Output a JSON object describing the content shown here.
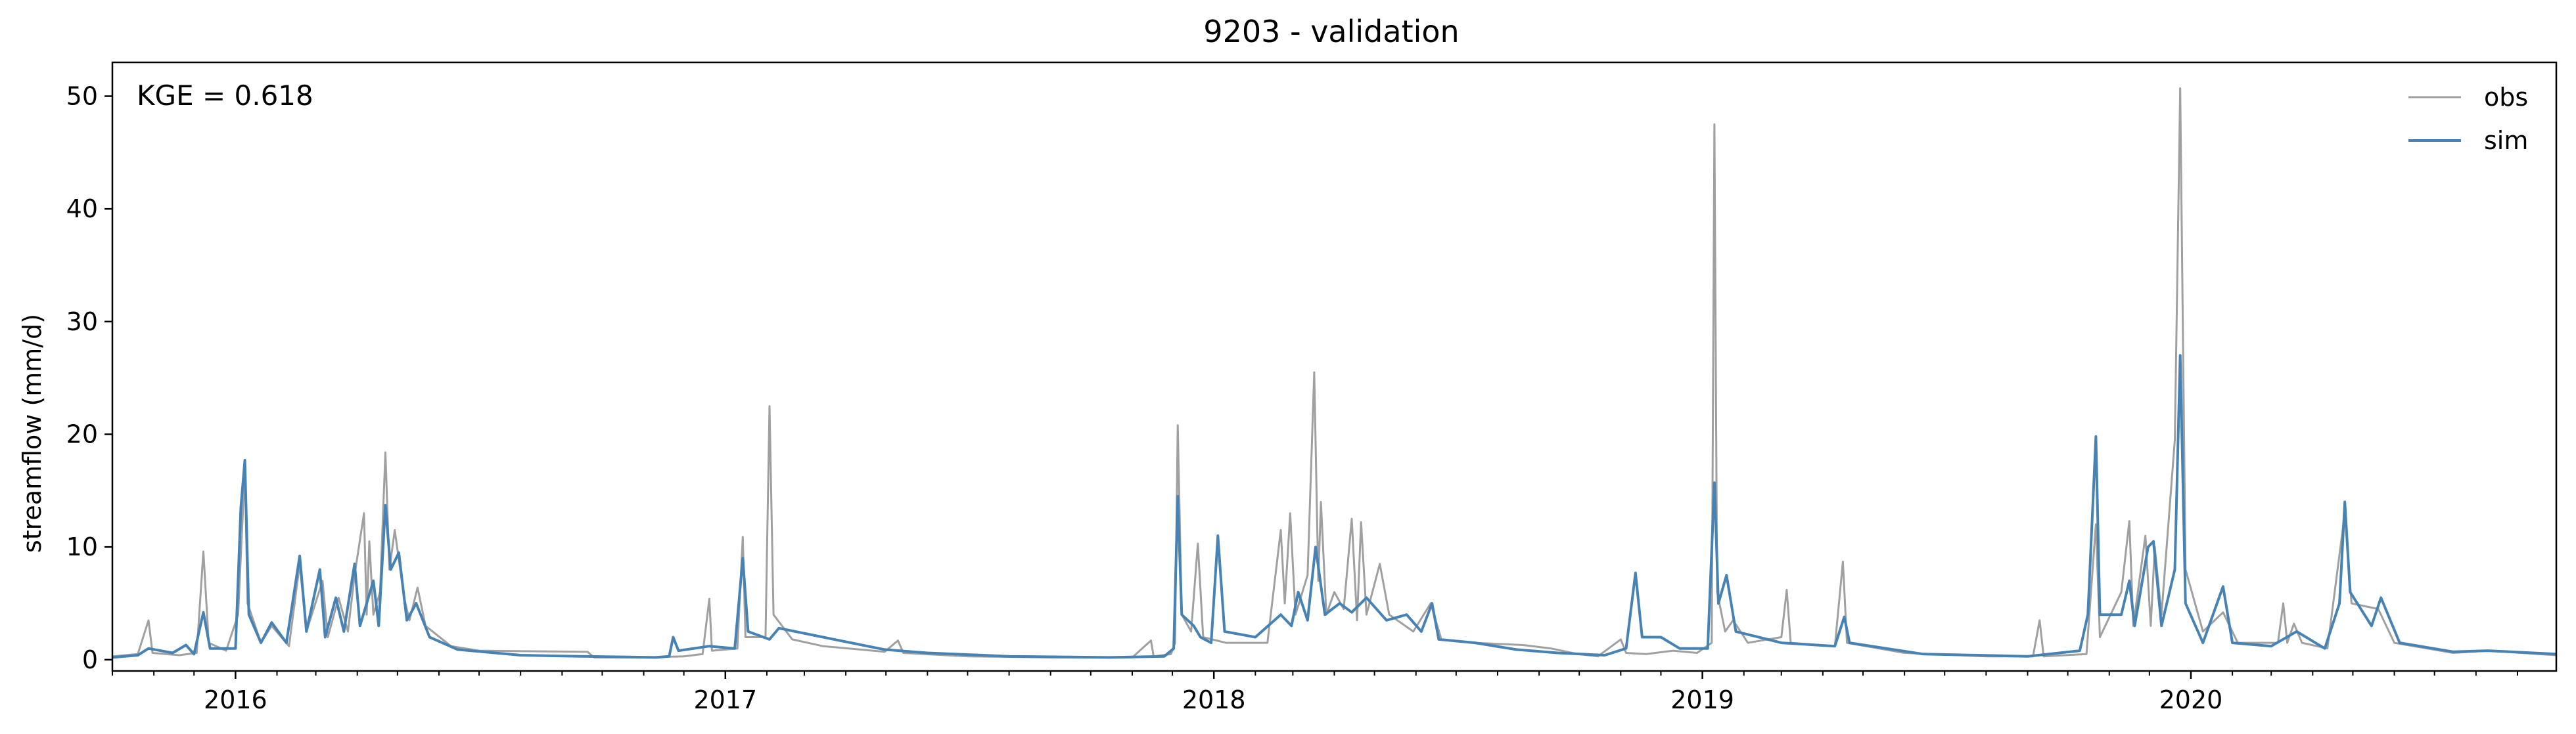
{
  "chart_data": {
    "type": "line",
    "title": "9203 - validation",
    "xlabel": "",
    "ylabel": "streamflow (mm/d)",
    "annotation": "KGE = 0.618",
    "xlim": [
      "2015-10-01",
      "2020-09-30"
    ],
    "ylim": [
      -1,
      53
    ],
    "y_ticks": [
      0,
      10,
      20,
      30,
      40,
      50
    ],
    "x_tick_labels": [
      "2016",
      "2017",
      "2018",
      "2019",
      "2020"
    ],
    "x_tick_dates": [
      "2016-01-01",
      "2017-01-01",
      "2018-01-01",
      "2019-01-01",
      "2020-01-01"
    ],
    "grid": false,
    "legend_position": "top-right",
    "series": [
      {
        "name": "obs",
        "color": "#a0a0a0",
        "points": [
          [
            "2015-10-01",
            0.3
          ],
          [
            "2015-10-20",
            0.5
          ],
          [
            "2015-10-28",
            3.5
          ],
          [
            "2015-10-31",
            0.6
          ],
          [
            "2015-11-20",
            0.4
          ],
          [
            "2015-12-03",
            0.6
          ],
          [
            "2015-12-08",
            9.6
          ],
          [
            "2015-12-12",
            1.5
          ],
          [
            "2015-12-25",
            0.8
          ],
          [
            "2016-01-03",
            4.0
          ],
          [
            "2016-01-08",
            17.0
          ],
          [
            "2016-01-10",
            5.0
          ],
          [
            "2016-01-20",
            1.5
          ],
          [
            "2016-01-28",
            3.0
          ],
          [
            "2016-02-10",
            1.2
          ],
          [
            "2016-02-18",
            8.5
          ],
          [
            "2016-02-23",
            2.5
          ],
          [
            "2016-03-06",
            7.0
          ],
          [
            "2016-03-10",
            2.0
          ],
          [
            "2016-03-18",
            5.5
          ],
          [
            "2016-03-25",
            2.5
          ],
          [
            "2016-03-30",
            7.5
          ],
          [
            "2016-04-06",
            13.0
          ],
          [
            "2016-04-08",
            4.0
          ],
          [
            "2016-04-10",
            10.5
          ],
          [
            "2016-04-13",
            4.0
          ],
          [
            "2016-04-18",
            6.0
          ],
          [
            "2016-04-22",
            18.4
          ],
          [
            "2016-04-25",
            8.0
          ],
          [
            "2016-04-29",
            11.5
          ],
          [
            "2016-05-06",
            5.5
          ],
          [
            "2016-05-10",
            3.5
          ],
          [
            "2016-05-16",
            6.4
          ],
          [
            "2016-05-22",
            3.0
          ],
          [
            "2016-06-10",
            1.2
          ],
          [
            "2016-07-01",
            0.8
          ],
          [
            "2016-09-20",
            0.7
          ],
          [
            "2016-09-25",
            0.2
          ],
          [
            "2016-11-01",
            0.2
          ],
          [
            "2016-12-01",
            0.3
          ],
          [
            "2016-12-15",
            0.5
          ],
          [
            "2016-12-20",
            5.4
          ],
          [
            "2016-12-22",
            0.8
          ],
          [
            "2017-01-10",
            1.0
          ],
          [
            "2017-01-14",
            10.9
          ],
          [
            "2017-01-16",
            2.0
          ],
          [
            "2017-01-31",
            2.0
          ],
          [
            "2017-02-03",
            22.5
          ],
          [
            "2017-02-06",
            4.0
          ],
          [
            "2017-02-20",
            1.8
          ],
          [
            "2017-03-15",
            1.2
          ],
          [
            "2017-04-30",
            0.7
          ],
          [
            "2017-05-10",
            1.7
          ],
          [
            "2017-05-14",
            0.6
          ],
          [
            "2017-07-01",
            0.3
          ],
          [
            "2017-09-01",
            0.2
          ],
          [
            "2017-11-01",
            0.2
          ],
          [
            "2017-11-15",
            1.7
          ],
          [
            "2017-11-17",
            0.3
          ],
          [
            "2017-11-30",
            0.5
          ],
          [
            "2017-12-03",
            1.5
          ],
          [
            "2017-12-05",
            20.8
          ],
          [
            "2017-12-08",
            4.0
          ],
          [
            "2017-12-15",
            2.5
          ],
          [
            "2017-12-20",
            10.3
          ],
          [
            "2017-12-24",
            2.0
          ],
          [
            "2018-01-10",
            1.5
          ],
          [
            "2018-02-10",
            1.5
          ],
          [
            "2018-02-20",
            11.5
          ],
          [
            "2018-02-23",
            5.0
          ],
          [
            "2018-02-27",
            13.0
          ],
          [
            "2018-03-03",
            4.0
          ],
          [
            "2018-03-12",
            7.5
          ],
          [
            "2018-03-17",
            25.5
          ],
          [
            "2018-03-20",
            7.0
          ],
          [
            "2018-03-22",
            14.0
          ],
          [
            "2018-03-26",
            4.0
          ],
          [
            "2018-04-01",
            6.0
          ],
          [
            "2018-04-08",
            4.5
          ],
          [
            "2018-04-14",
            12.5
          ],
          [
            "2018-04-18",
            3.5
          ],
          [
            "2018-04-21",
            12.2
          ],
          [
            "2018-04-25",
            4.0
          ],
          [
            "2018-05-05",
            8.5
          ],
          [
            "2018-05-12",
            4.0
          ],
          [
            "2018-05-30",
            2.5
          ],
          [
            "2018-06-12",
            5.0
          ],
          [
            "2018-06-20",
            1.8
          ],
          [
            "2018-07-15",
            1.5
          ],
          [
            "2018-08-20",
            1.3
          ],
          [
            "2018-09-10",
            1.0
          ],
          [
            "2018-09-30",
            0.5
          ],
          [
            "2018-10-15",
            0.3
          ],
          [
            "2018-11-01",
            1.8
          ],
          [
            "2018-11-05",
            0.6
          ],
          [
            "2018-11-20",
            0.5
          ],
          [
            "2018-12-10",
            0.8
          ],
          [
            "2018-12-28",
            0.6
          ],
          [
            "2019-01-08",
            1.5
          ],
          [
            "2019-01-10",
            47.5
          ],
          [
            "2019-01-12",
            6.0
          ],
          [
            "2019-01-18",
            2.5
          ],
          [
            "2019-01-24",
            3.5
          ],
          [
            "2019-02-04",
            1.5
          ],
          [
            "2019-03-01",
            2.0
          ],
          [
            "2019-03-05",
            6.2
          ],
          [
            "2019-03-08",
            1.5
          ],
          [
            "2019-04-10",
            1.2
          ],
          [
            "2019-04-16",
            8.7
          ],
          [
            "2019-04-19",
            1.5
          ],
          [
            "2019-06-01",
            0.6
          ],
          [
            "2019-08-01",
            0.3
          ],
          [
            "2019-09-05",
            0.3
          ],
          [
            "2019-09-10",
            3.5
          ],
          [
            "2019-09-13",
            0.3
          ],
          [
            "2019-10-15",
            0.5
          ],
          [
            "2019-10-22",
            12.0
          ],
          [
            "2019-10-25",
            2.0
          ],
          [
            "2019-11-10",
            6.0
          ],
          [
            "2019-11-16",
            12.3
          ],
          [
            "2019-11-19",
            3.0
          ],
          [
            "2019-11-28",
            11.0
          ],
          [
            "2019-12-02",
            3.0
          ],
          [
            "2019-12-05",
            10.0
          ],
          [
            "2019-12-10",
            4.0
          ],
          [
            "2019-12-20",
            19.5
          ],
          [
            "2019-12-24",
            50.7
          ],
          [
            "2019-12-28",
            8.0
          ],
          [
            "2020-01-10",
            2.5
          ],
          [
            "2020-01-25",
            4.2
          ],
          [
            "2020-02-05",
            1.5
          ],
          [
            "2020-03-06",
            1.5
          ],
          [
            "2020-03-10",
            5.0
          ],
          [
            "2020-03-13",
            1.5
          ],
          [
            "2020-03-18",
            3.2
          ],
          [
            "2020-03-24",
            1.5
          ],
          [
            "2020-04-12",
            1.0
          ],
          [
            "2020-04-25",
            13.0
          ],
          [
            "2020-04-30",
            5.0
          ],
          [
            "2020-05-20",
            4.5
          ],
          [
            "2020-06-01",
            1.5
          ],
          [
            "2020-07-15",
            0.6
          ],
          [
            "2020-08-10",
            0.8
          ],
          [
            "2020-09-30",
            0.4
          ]
        ]
      },
      {
        "name": "sim",
        "color": "#4682b4",
        "points": [
          [
            "2015-10-01",
            0.2
          ],
          [
            "2015-10-20",
            0.4
          ],
          [
            "2015-10-28",
            1.0
          ],
          [
            "2015-11-15",
            0.6
          ],
          [
            "2015-11-25",
            1.3
          ],
          [
            "2015-12-01",
            0.5
          ],
          [
            "2015-12-08",
            4.2
          ],
          [
            "2015-12-13",
            1.0
          ],
          [
            "2016-01-01",
            1.0
          ],
          [
            "2016-01-05",
            13.5
          ],
          [
            "2016-01-08",
            17.7
          ],
          [
            "2016-01-11",
            4.0
          ],
          [
            "2016-01-20",
            1.5
          ],
          [
            "2016-01-28",
            3.3
          ],
          [
            "2016-02-08",
            1.5
          ],
          [
            "2016-02-18",
            9.2
          ],
          [
            "2016-02-23",
            2.5
          ],
          [
            "2016-03-04",
            8.0
          ],
          [
            "2016-03-08",
            2.0
          ],
          [
            "2016-03-16",
            5.5
          ],
          [
            "2016-03-22",
            2.5
          ],
          [
            "2016-03-30",
            8.5
          ],
          [
            "2016-04-03",
            3.0
          ],
          [
            "2016-04-13",
            7.0
          ],
          [
            "2016-04-17",
            3.0
          ],
          [
            "2016-04-22",
            13.7
          ],
          [
            "2016-04-26",
            8.0
          ],
          [
            "2016-05-02",
            9.5
          ],
          [
            "2016-05-08",
            3.5
          ],
          [
            "2016-05-15",
            5.0
          ],
          [
            "2016-05-25",
            2.0
          ],
          [
            "2016-06-15",
            0.9
          ],
          [
            "2016-08-01",
            0.4
          ],
          [
            "2016-09-15",
            0.3
          ],
          [
            "2016-11-10",
            0.2
          ],
          [
            "2016-11-20",
            0.3
          ],
          [
            "2016-11-23",
            2.0
          ],
          [
            "2016-11-27",
            0.8
          ],
          [
            "2016-12-20",
            1.2
          ],
          [
            "2017-01-08",
            1.0
          ],
          [
            "2017-01-14",
            9.0
          ],
          [
            "2017-01-18",
            2.5
          ],
          [
            "2017-02-03",
            1.8
          ],
          [
            "2017-02-10",
            2.8
          ],
          [
            "2017-03-15",
            2.0
          ],
          [
            "2017-04-30",
            0.9
          ],
          [
            "2017-06-01",
            0.6
          ],
          [
            "2017-08-01",
            0.3
          ],
          [
            "2017-10-15",
            0.2
          ],
          [
            "2017-11-25",
            0.3
          ],
          [
            "2017-12-02",
            1.0
          ],
          [
            "2017-12-05",
            14.5
          ],
          [
            "2017-12-08",
            4.0
          ],
          [
            "2017-12-17",
            3.0
          ],
          [
            "2017-12-22",
            2.0
          ],
          [
            "2017-12-30",
            1.5
          ],
          [
            "2018-01-04",
            11.0
          ],
          [
            "2018-01-09",
            2.5
          ],
          [
            "2018-02-01",
            2.0
          ],
          [
            "2018-02-20",
            4.0
          ],
          [
            "2018-02-28",
            3.0
          ],
          [
            "2018-03-05",
            6.0
          ],
          [
            "2018-03-12",
            3.5
          ],
          [
            "2018-03-18",
            10.0
          ],
          [
            "2018-03-25",
            4.0
          ],
          [
            "2018-04-05",
            5.0
          ],
          [
            "2018-04-14",
            4.2
          ],
          [
            "2018-04-25",
            5.5
          ],
          [
            "2018-05-10",
            3.5
          ],
          [
            "2018-05-25",
            4.0
          ],
          [
            "2018-06-05",
            2.5
          ],
          [
            "2018-06-13",
            5.0
          ],
          [
            "2018-06-18",
            1.8
          ],
          [
            "2018-07-15",
            1.5
          ],
          [
            "2018-08-15",
            0.9
          ],
          [
            "2018-09-15",
            0.6
          ],
          [
            "2018-10-20",
            0.4
          ],
          [
            "2018-11-05",
            1.0
          ],
          [
            "2018-11-12",
            7.7
          ],
          [
            "2018-11-17",
            2.0
          ],
          [
            "2018-12-01",
            2.0
          ],
          [
            "2018-12-15",
            1.0
          ],
          [
            "2019-01-05",
            1.0
          ],
          [
            "2019-01-10",
            15.7
          ],
          [
            "2019-01-13",
            5.0
          ],
          [
            "2019-01-19",
            7.5
          ],
          [
            "2019-01-26",
            2.5
          ],
          [
            "2019-03-01",
            1.5
          ],
          [
            "2019-04-10",
            1.2
          ],
          [
            "2019-04-17",
            3.8
          ],
          [
            "2019-04-21",
            1.5
          ],
          [
            "2019-06-15",
            0.5
          ],
          [
            "2019-09-01",
            0.3
          ],
          [
            "2019-10-10",
            0.8
          ],
          [
            "2019-10-16",
            4.0
          ],
          [
            "2019-10-22",
            19.8
          ],
          [
            "2019-10-25",
            4.0
          ],
          [
            "2019-11-10",
            4.0
          ],
          [
            "2019-11-16",
            7.0
          ],
          [
            "2019-11-20",
            3.0
          ],
          [
            "2019-11-30",
            10.0
          ],
          [
            "2019-12-04",
            10.5
          ],
          [
            "2019-12-10",
            3.0
          ],
          [
            "2019-12-20",
            8.0
          ],
          [
            "2019-12-24",
            27.0
          ],
          [
            "2019-12-28",
            5.0
          ],
          [
            "2020-01-10",
            1.5
          ],
          [
            "2020-01-25",
            6.5
          ],
          [
            "2020-02-01",
            1.5
          ],
          [
            "2020-03-01",
            1.2
          ],
          [
            "2020-03-20",
            2.5
          ],
          [
            "2020-04-10",
            1.0
          ],
          [
            "2020-04-21",
            5.0
          ],
          [
            "2020-04-25",
            14.0
          ],
          [
            "2020-04-29",
            6.0
          ],
          [
            "2020-05-15",
            3.0
          ],
          [
            "2020-05-22",
            5.5
          ],
          [
            "2020-06-05",
            1.5
          ],
          [
            "2020-07-15",
            0.7
          ],
          [
            "2020-08-10",
            0.8
          ],
          [
            "2020-09-30",
            0.5
          ]
        ]
      }
    ]
  }
}
